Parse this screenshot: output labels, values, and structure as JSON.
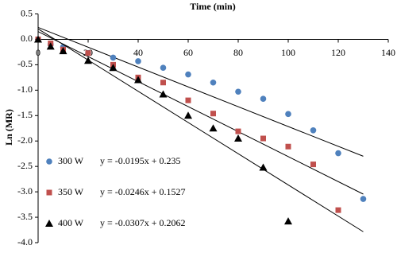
{
  "chart_data": {
    "type": "scatter",
    "x_label": "Time (min)",
    "y_label": "Ln (MR)",
    "xlim": [
      0,
      140
    ],
    "xticks": [
      0,
      20,
      40,
      60,
      80,
      100,
      120,
      140
    ],
    "ylim": [
      -4.0,
      0.5
    ],
    "yticks": [
      {
        "value": 0.5,
        "label": "0.5"
      },
      {
        "value": 0,
        "label": "0.0"
      },
      {
        "value": -0.5,
        "label": "-0.5"
      },
      {
        "value": -1,
        "label": "-1.0"
      },
      {
        "value": -1.5,
        "label": "-1.5"
      },
      {
        "value": -2,
        "label": "-2.0"
      },
      {
        "value": -2.5,
        "label": "-2.5"
      },
      {
        "value": -3,
        "label": "-3.0"
      },
      {
        "value": -3.5,
        "label": "-3.5"
      },
      {
        "value": -4,
        "label": "-4.0"
      }
    ],
    "series": [
      {
        "name": "300 W",
        "color": "#4f81bd",
        "marker": "circle",
        "x": [
          0,
          5,
          10,
          20,
          30,
          40,
          50,
          60,
          70,
          80,
          90,
          100,
          110,
          120,
          130
        ],
        "values": [
          0,
          -0.1,
          -0.15,
          -0.27,
          -0.36,
          -0.43,
          -0.56,
          -0.69,
          -0.85,
          -1.03,
          -1.17,
          -1.47,
          -1.79,
          -2.24,
          -3.14
        ],
        "trendline": {
          "slope": -0.0195,
          "intercept": 0.235,
          "label": "y = -0.0195x + 0.235"
        }
      },
      {
        "name": "350 W",
        "color": "#c0504d",
        "marker": "square",
        "x": [
          0,
          5,
          10,
          20,
          30,
          40,
          50,
          60,
          70,
          80,
          90,
          100,
          110,
          120
        ],
        "values": [
          0,
          -0.08,
          -0.2,
          -0.27,
          -0.5,
          -0.75,
          -0.85,
          -1.2,
          -1.46,
          -1.81,
          -1.95,
          -2.11,
          -2.46,
          -3.36
        ],
        "trendline": {
          "slope": -0.0246,
          "intercept": 0.1527,
          "label": "y = -0.0246x + 0.1527"
        }
      },
      {
        "name": "400 W",
        "color": "#000000",
        "marker": "triangle",
        "x": [
          0,
          5,
          10,
          20,
          30,
          40,
          50,
          60,
          70,
          80,
          90,
          100
        ],
        "values": [
          0,
          -0.14,
          -0.23,
          -0.42,
          -0.56,
          -0.8,
          -1.08,
          -1.5,
          -1.75,
          -1.95,
          -2.52,
          -3.58
        ],
        "trendline": {
          "slope": -0.0307,
          "intercept": 0.2062,
          "label": "y = -0.0307x + 0.2062"
        }
      }
    ]
  }
}
